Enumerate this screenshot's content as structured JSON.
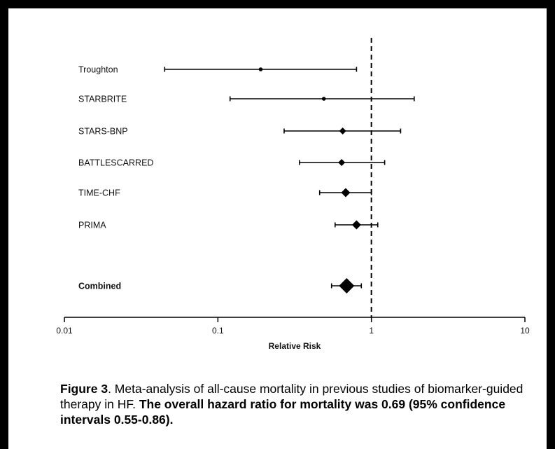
{
  "chart_data": {
    "type": "forest",
    "x_scale": "log",
    "xlim": [
      0.01,
      10
    ],
    "xlabel": "Relative Risk",
    "x_ticks": [
      "0.01",
      "0.1",
      "1",
      "10"
    ],
    "x_tick_values": [
      0.01,
      0.1,
      1,
      10
    ],
    "reference_line": 1,
    "studies": [
      {
        "label": "Troughton",
        "estimate": 0.19,
        "ci": [
          0.045,
          0.8
        ],
        "bold": false,
        "marker": "point"
      },
      {
        "label": "STARBRITE",
        "estimate": 0.49,
        "ci": [
          0.12,
          1.9
        ],
        "bold": false,
        "marker": "point"
      },
      {
        "label": "STARS-BNP",
        "estimate": 0.65,
        "ci": [
          0.27,
          1.55
        ],
        "bold": false,
        "marker": "diamond-small"
      },
      {
        "label": "BATTLESCARRED",
        "estimate": 0.64,
        "ci": [
          0.34,
          1.22
        ],
        "bold": false,
        "marker": "diamond-small"
      },
      {
        "label": "TIME-CHF",
        "estimate": 0.68,
        "ci": [
          0.46,
          1.0
        ],
        "bold": false,
        "marker": "diamond-medium"
      },
      {
        "label": "PRIMA",
        "estimate": 0.8,
        "ci": [
          0.58,
          1.1
        ],
        "bold": false,
        "marker": "diamond-medium"
      },
      {
        "label": "Combined",
        "estimate": 0.69,
        "ci": [
          0.55,
          0.86
        ],
        "bold": true,
        "marker": "diamond-large"
      }
    ]
  },
  "caption": {
    "figure_label": "Figure 3",
    "text": ". Meta-analysis of all-cause mortality in previous studies of biomarker-guided therapy in HF. ",
    "bold_text": "The overall hazard ratio for mortality was 0.69 (95% confidence intervals 0.55-0.86)."
  }
}
